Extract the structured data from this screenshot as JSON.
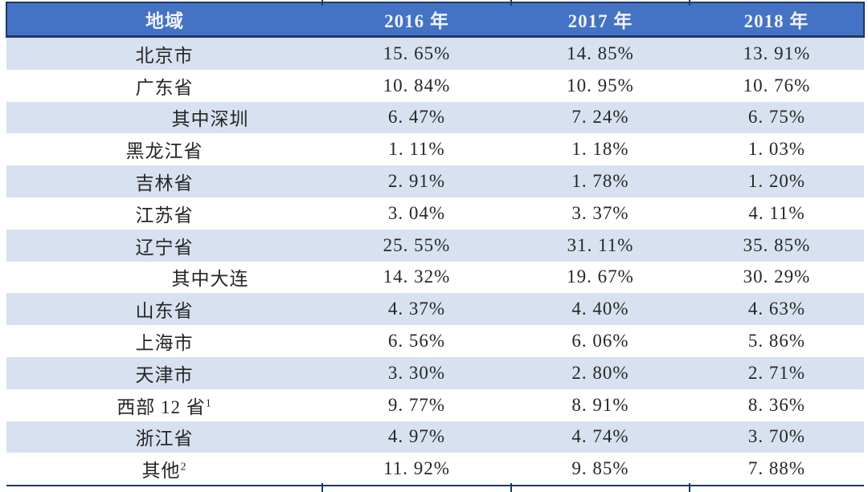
{
  "table": {
    "columns": [
      "地域",
      "2016 年",
      "2017 年",
      "2018 年"
    ],
    "rows": [
      {
        "label": "北京市",
        "sup": "",
        "values": [
          "15. 65%",
          "14. 85%",
          "13. 91%"
        ]
      },
      {
        "label": "广东省",
        "sup": "",
        "values": [
          "10. 84%",
          "10. 95%",
          "10. 76%"
        ]
      },
      {
        "label": "其中深圳",
        "sup": "",
        "values": [
          "6. 47%",
          "7. 24%",
          "6. 75%"
        ]
      },
      {
        "label": "黑龙江省",
        "sup": "",
        "values": [
          "1. 11%",
          "1. 18%",
          "1. 03%"
        ]
      },
      {
        "label": "吉林省",
        "sup": "",
        "values": [
          "2. 91%",
          "1. 78%",
          "1. 20%"
        ]
      },
      {
        "label": "江苏省",
        "sup": "",
        "values": [
          "3. 04%",
          "3. 37%",
          "4. 11%"
        ]
      },
      {
        "label": "辽宁省",
        "sup": "",
        "values": [
          "25. 55%",
          "31. 11%",
          "35. 85%"
        ]
      },
      {
        "label": "其中大连",
        "sup": "",
        "values": [
          "14. 32%",
          "19. 67%",
          "30. 29%"
        ]
      },
      {
        "label": "山东省",
        "sup": "",
        "values": [
          "4. 37%",
          "4. 40%",
          "4. 63%"
        ]
      },
      {
        "label": "上海市",
        "sup": "",
        "values": [
          "6. 56%",
          "6. 06%",
          "5. 86%"
        ]
      },
      {
        "label": "天津市",
        "sup": "",
        "values": [
          "3. 30%",
          "2. 80%",
          "2. 71%"
        ]
      },
      {
        "label": "西部 12 省",
        "sup": "1",
        "values": [
          "9. 77%",
          "8. 91%",
          "8. 36%"
        ]
      },
      {
        "label": "浙江省",
        "sup": "",
        "values": [
          "4. 97%",
          "4. 74%",
          "3. 70%"
        ]
      },
      {
        "label": "其他",
        "sup": "2",
        "values": [
          "11. 92%",
          "9. 85%",
          "7. 88%"
        ]
      }
    ]
  },
  "colors": {
    "header_bg": "#4472C4",
    "header_text": "#EFF4FB",
    "rule": "#1F3864",
    "stripe": "#D8E1EF",
    "body_text": "#262626"
  }
}
